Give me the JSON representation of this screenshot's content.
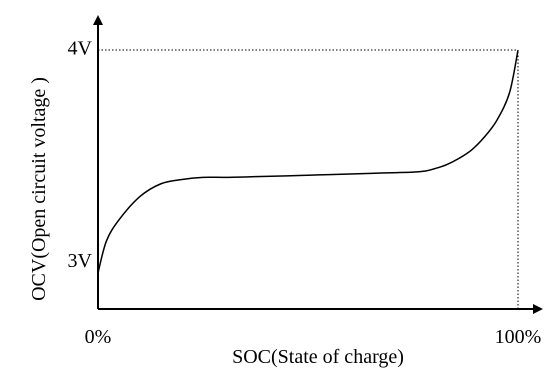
{
  "chart_data": {
    "type": "line",
    "xlabel": "SOC(State of charge)",
    "ylabel": "OCV(Open circuit voltage )",
    "x_tick_labels": [
      {
        "value": 0,
        "label": "0%"
      },
      {
        "value": 100,
        "label": "100%"
      }
    ],
    "y_tick_labels": [
      {
        "value": 3,
        "label": "3V"
      },
      {
        "value": 4,
        "label": "4V"
      }
    ],
    "xlim": [
      0,
      100
    ],
    "ylim": [
      2.78,
      4.0
    ],
    "axis_arrows": true,
    "grid": false,
    "reference_lines": "dotted lines at 100% SOC and 4V",
    "series": [
      {
        "color": "#000000",
        "x": [
          0,
          2,
          5,
          10,
          15,
          20,
          25,
          30,
          35,
          40,
          45,
          50,
          55,
          60,
          65,
          70,
          75,
          78,
          80,
          83,
          86,
          89,
          92,
          95,
          98,
          100
        ],
        "y": [
          2.95,
          3.1,
          3.2,
          3.31,
          3.37,
          3.39,
          3.4,
          3.4,
          3.402,
          3.405,
          3.407,
          3.41,
          3.413,
          3.416,
          3.419,
          3.422,
          3.425,
          3.43,
          3.44,
          3.46,
          3.49,
          3.53,
          3.59,
          3.67,
          3.8,
          4.0
        ]
      }
    ]
  }
}
